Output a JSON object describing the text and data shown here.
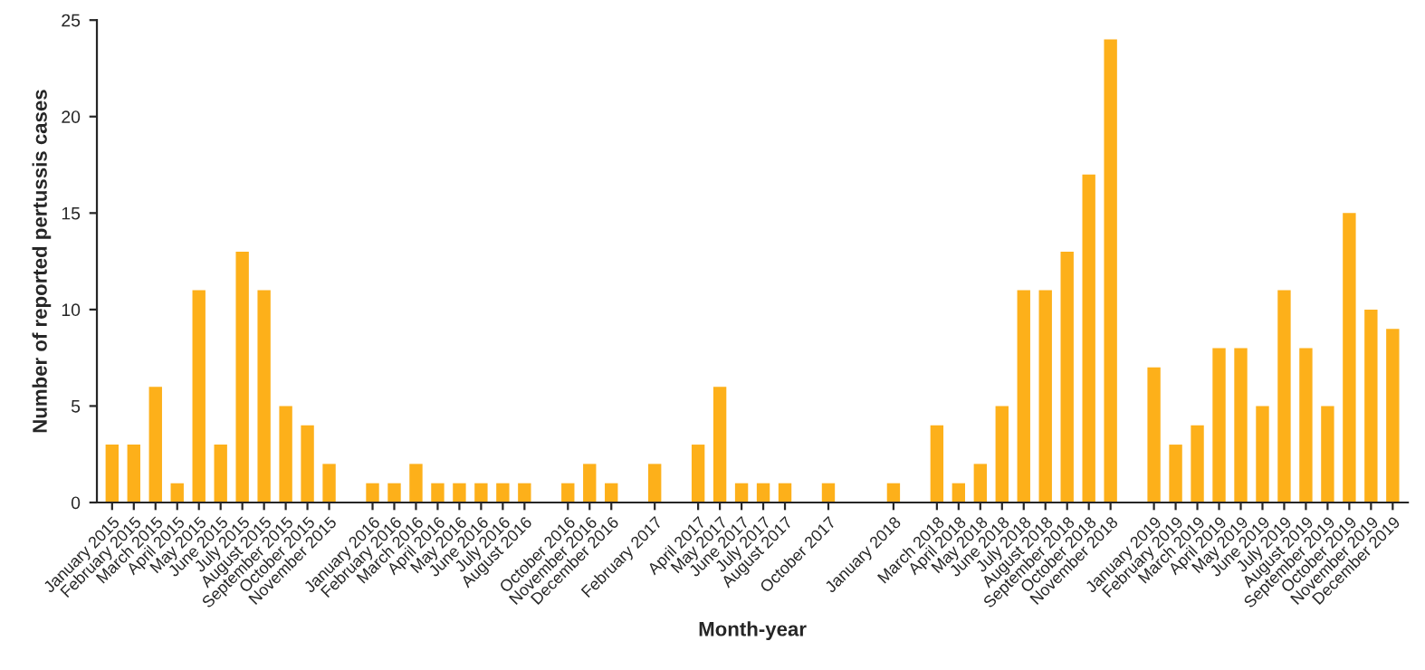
{
  "chart_data": {
    "type": "bar",
    "xlabel": "Month-year",
    "ylabel": "Number of reported pertussis cases",
    "categories": [
      "January 2015",
      "February 2015",
      "March 2015",
      "April 2015",
      "May 2015",
      "June 2015",
      "July 2015",
      "August 2015",
      "September 2015",
      "October 2015",
      "November 2015",
      null,
      "January 2016",
      "February 2016",
      "March 2016",
      "April 2016",
      "May 2016",
      "June 2016",
      "July 2016",
      "August 2016",
      null,
      "October 2016",
      "November 2016",
      "December 2016",
      null,
      "February 2017",
      null,
      "April 2017",
      "May 2017",
      "June 2017",
      "July 2017",
      "August 2017",
      null,
      "October 2017",
      null,
      null,
      "January 2018",
      null,
      "March 2018",
      "April 2018",
      "May 2018",
      "June 2018",
      "July 2018",
      "August 2018",
      "September 2018",
      "October 2018",
      "November 2018",
      null,
      "January 2019",
      "February 2019",
      "March 2019",
      "April 2019",
      "May 2019",
      "June 2019",
      "July 2019",
      "August 2019",
      "September 2019",
      "October 2019",
      "November 2019",
      "December 2019"
    ],
    "values": [
      3,
      3,
      6,
      1,
      11,
      3,
      13,
      11,
      5,
      4,
      2,
      0,
      1,
      1,
      2,
      1,
      1,
      1,
      1,
      1,
      0,
      1,
      2,
      1,
      0,
      2,
      0,
      3,
      6,
      1,
      1,
      1,
      0,
      1,
      0,
      0,
      1,
      0,
      4,
      1,
      2,
      5,
      11,
      11,
      13,
      17,
      24,
      0,
      7,
      3,
      4,
      8,
      8,
      5,
      11,
      8,
      5,
      15,
      10,
      9
    ],
    "color": "#fdb01a",
    "ylim": [
      0,
      25
    ],
    "yticks": [
      0,
      5,
      10,
      15,
      20,
      25
    ],
    "grid": false
  }
}
